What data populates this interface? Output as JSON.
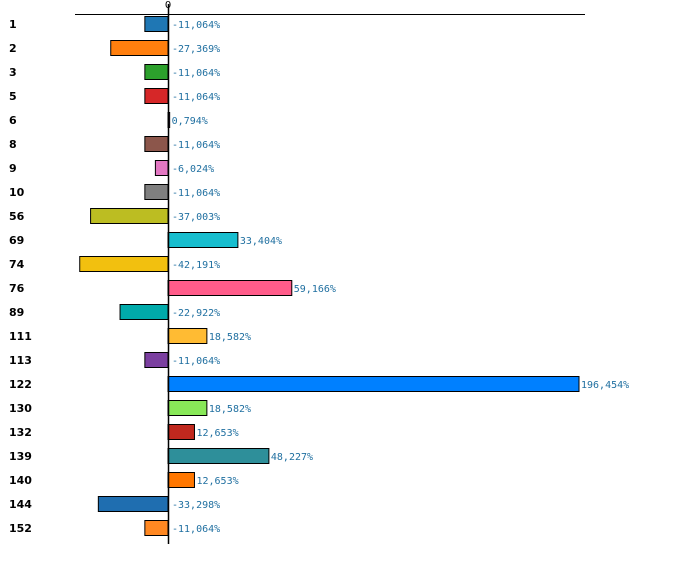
{
  "chart_data": {
    "type": "bar",
    "orientation": "horizontal",
    "zero_tick_label": "0",
    "categories": [
      "1",
      "2",
      "3",
      "5",
      "6",
      "8",
      "9",
      "10",
      "56",
      "69",
      "74",
      "76",
      "89",
      "111",
      "113",
      "122",
      "130",
      "132",
      "139",
      "140",
      "144",
      "152"
    ],
    "values": [
      -11.064,
      -27.369,
      -11.064,
      -11.064,
      0.794,
      -11.064,
      -6.024,
      -11.064,
      -37.003,
      33.404,
      -42.191,
      59.166,
      -22.922,
      18.582,
      -11.064,
      196.454,
      18.582,
      12.653,
      48.227,
      12.653,
      -33.298,
      -11.064
    ],
    "value_labels": [
      "-11,064%",
      "-27,369%",
      "-11,064%",
      "-11,064%",
      "0,794%",
      "-11,064%",
      "-6,024%",
      "-11,064%",
      "-37,003%",
      "33,404%",
      "-42,191%",
      "59,166%",
      "-22,922%",
      "18,582%",
      "-11,064%",
      "196,454%",
      "18,582%",
      "12,653%",
      "48,227%",
      "12,653%",
      "-33,298%",
      "-11,064%"
    ],
    "colors": [
      "#1f77b4",
      "#ff7f0e",
      "#2ca02c",
      "#d62728",
      "#9467bd",
      "#8c564b",
      "#e377c2",
      "#7f7f7f",
      "#bcbd22",
      "#17becf",
      "#f2c00f",
      "#ff5c8a",
      "#00aaaa",
      "#ffbb33",
      "#7b3fa0",
      "#0080ff",
      "#88e858",
      "#c0281e",
      "#2e8f9a",
      "#ff7700",
      "#1f6eb0",
      "#ff8822"
    ],
    "xlim": [
      -42.191,
      196.454
    ]
  }
}
